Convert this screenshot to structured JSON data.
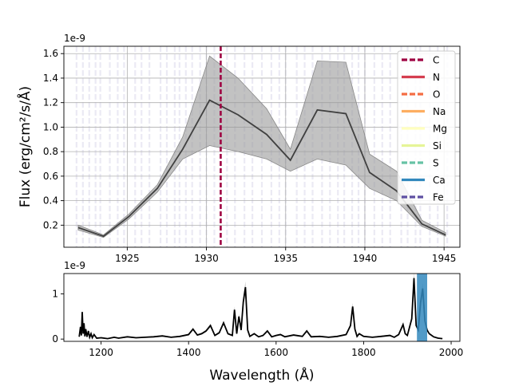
{
  "colors": {
    "mean_line": "#404040",
    "band": "#999999",
    "grid": "#b0b0b0",
    "highlight_line": "#9e0142",
    "line_list": "#5e4fa2",
    "full_spectrum": "#000000",
    "window_marker": "#3288bd"
  },
  "chart_data": [
    {
      "type": "line",
      "panel": "zoom",
      "title": "",
      "xlabel": "",
      "ylabel": "Flux (erg/cm²/s/Å)",
      "offset_text": "1e-9",
      "y_scale_exponent": -9,
      "xlim": [
        1921,
        1946
      ],
      "ylim": [
        0.02,
        1.66
      ],
      "x_ticks": [
        1925,
        1930,
        1935,
        1940,
        1945
      ],
      "x_tick_labels": [
        "1925",
        "1930",
        "1935",
        "1940",
        "1945"
      ],
      "y_ticks": [
        0.2,
        0.4,
        0.6,
        0.8,
        1.0,
        1.2,
        1.4,
        1.6
      ],
      "y_tick_labels": [
        "0.2",
        "0.4",
        "0.6",
        "0.8",
        "1.0",
        "1.2",
        "1.4",
        "1.6"
      ],
      "grid": true,
      "legend_position": "top-right",
      "series": [
        {
          "x": [
            1921.9,
            1923.5,
            1925.1,
            1926.9,
            1928.5,
            1930.2,
            1932.0,
            1933.8,
            1935.3,
            1937.0,
            1938.8,
            1940.3,
            1942.0,
            1943.6,
            1945.1
          ],
          "values": [
            0.18,
            0.11,
            0.27,
            0.5,
            0.82,
            1.22,
            1.1,
            0.94,
            0.73,
            1.14,
            1.11,
            0.63,
            0.48,
            0.21,
            0.12
          ],
          "upper": [
            0.2,
            0.12,
            0.29,
            0.53,
            0.92,
            1.58,
            1.4,
            1.15,
            0.82,
            1.54,
            1.53,
            0.78,
            0.64,
            0.24,
            0.14
          ],
          "lower": [
            0.16,
            0.1,
            0.25,
            0.47,
            0.74,
            0.85,
            0.8,
            0.74,
            0.64,
            0.74,
            0.69,
            0.5,
            0.4,
            0.19,
            0.11
          ]
        }
      ],
      "legend": [
        {
          "label": "C",
          "color": "#9e0142",
          "style": "dashed"
        },
        {
          "label": "N",
          "color": "#d53e4f",
          "style": "solid"
        },
        {
          "label": "O",
          "color": "#f46d43",
          "style": "dashed"
        },
        {
          "label": "Na",
          "color": "#fdae61",
          "style": "solid"
        },
        {
          "label": "Mg",
          "color": "#ffffbf",
          "style": "solid"
        },
        {
          "label": "Si",
          "color": "#e6f598",
          "style": "solid"
        },
        {
          "label": "S",
          "color": "#66c2a5",
          "style": "dashed"
        },
        {
          "label": "Ca",
          "color": "#3288bd",
          "style": "solid"
        },
        {
          "label": "Fe",
          "color": "#5e4fa2",
          "style": "dashed"
        }
      ],
      "highlight_line_x": 1930.9,
      "line_list_x": [
        1921.8,
        1922.2,
        1922.6,
        1923.0,
        1923.3,
        1923.9,
        1924.4,
        1924.8,
        1925.5,
        1925.9,
        1926.4,
        1927.1,
        1927.5,
        1928.0,
        1928.3,
        1928.7,
        1929.1,
        1929.6,
        1930.0,
        1930.5,
        1931.3,
        1931.8,
        1932.4,
        1932.9,
        1933.5,
        1934.1,
        1934.6,
        1935.0,
        1935.7,
        1936.2,
        1936.7,
        1937.3,
        1937.8,
        1938.3,
        1938.7,
        1939.2,
        1939.6,
        1940.0,
        1940.6,
        1941.1,
        1941.6,
        1942.3,
        1942.7,
        1943.2,
        1943.5,
        1944.1,
        1944.6,
        1945.2
      ]
    },
    {
      "type": "line",
      "panel": "full",
      "title": "",
      "xlabel": "Wavelength (Å)",
      "ylabel": "",
      "offset_text": "1e-9",
      "y_scale_exponent": -9,
      "xlim": [
        1115,
        2020
      ],
      "ylim": [
        -0.05,
        1.45
      ],
      "x_ticks": [
        1200,
        1400,
        1600,
        1800,
        2000
      ],
      "x_tick_labels": [
        "1200",
        "1400",
        "1600",
        "1800",
        "2000"
      ],
      "y_ticks": [
        0,
        1
      ],
      "y_tick_labels": [
        "0",
        "1"
      ],
      "grid": false,
      "window_marker_x": [
        1921.8,
        1945.2
      ],
      "series": [
        {
          "x": [
            1150,
            1153,
            1155,
            1157,
            1159,
            1161,
            1163,
            1165,
            1168,
            1171,
            1174,
            1177,
            1180,
            1184,
            1190,
            1200,
            1215,
            1230,
            1240,
            1260,
            1280,
            1300,
            1320,
            1340,
            1360,
            1380,
            1400,
            1410,
            1420,
            1430,
            1440,
            1450,
            1460,
            1470,
            1480,
            1490,
            1500,
            1505,
            1510,
            1515,
            1520,
            1525,
            1530,
            1535,
            1540,
            1550,
            1560,
            1570,
            1580,
            1590,
            1600,
            1610,
            1620,
            1640,
            1660,
            1670,
            1680,
            1700,
            1720,
            1740,
            1760,
            1770,
            1775,
            1780,
            1785,
            1790,
            1800,
            1820,
            1840,
            1860,
            1870,
            1880,
            1890,
            1895,
            1900,
            1910,
            1915,
            1920,
            1925,
            1930,
            1935,
            1940,
            1945,
            1950,
            1960,
            1970,
            1980
          ],
          "values": [
            0.05,
            0.27,
            0.08,
            0.6,
            0.12,
            0.35,
            0.06,
            0.22,
            0.05,
            0.18,
            0.04,
            0.12,
            0.03,
            0.1,
            0.02,
            0.03,
            0.01,
            0.04,
            0.02,
            0.05,
            0.03,
            0.04,
            0.05,
            0.07,
            0.04,
            0.06,
            0.1,
            0.22,
            0.09,
            0.12,
            0.18,
            0.3,
            0.08,
            0.14,
            0.36,
            0.12,
            0.08,
            0.65,
            0.12,
            0.5,
            0.2,
            0.82,
            1.15,
            0.2,
            0.06,
            0.12,
            0.05,
            0.08,
            0.18,
            0.05,
            0.08,
            0.1,
            0.05,
            0.09,
            0.06,
            0.18,
            0.05,
            0.06,
            0.04,
            0.06,
            0.1,
            0.3,
            0.72,
            0.22,
            0.06,
            0.12,
            0.06,
            0.04,
            0.06,
            0.08,
            0.04,
            0.1,
            0.32,
            0.12,
            0.08,
            0.45,
            1.35,
            0.3,
            0.2,
            0.8,
            1.12,
            0.4,
            0.2,
            0.12,
            0.05,
            0.02,
            0.01
          ]
        }
      ]
    }
  ]
}
